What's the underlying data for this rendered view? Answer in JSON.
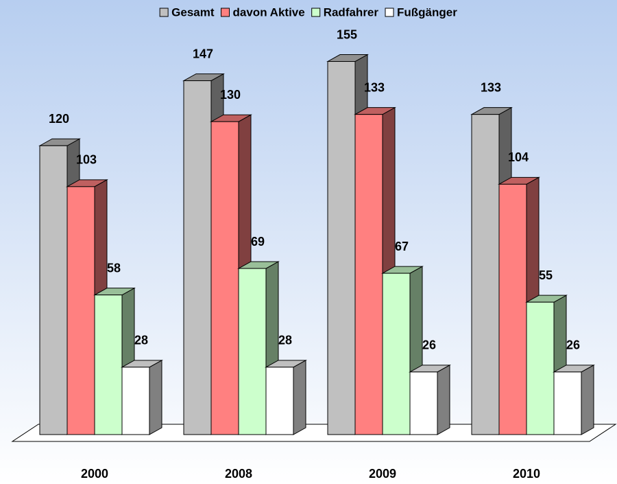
{
  "chart_data": {
    "type": "bar3d",
    "categories": [
      "2000",
      "2008",
      "2009",
      "2010"
    ],
    "series": [
      {
        "name": "Gesamt",
        "color": "#c0c0c0",
        "values": [
          120,
          147,
          155,
          133
        ]
      },
      {
        "name": "davon Aktive",
        "color": "#ff8080",
        "values": [
          103,
          130,
          133,
          104
        ]
      },
      {
        "name": "Radfahrer",
        "color": "#ccffcc",
        "values": [
          58,
          69,
          67,
          55
        ]
      },
      {
        "name": "Fußgänger",
        "color": "#ffffff",
        "values": [
          28,
          28,
          26,
          26
        ]
      }
    ],
    "ylim": [
      0,
      160
    ],
    "legend": "top"
  }
}
